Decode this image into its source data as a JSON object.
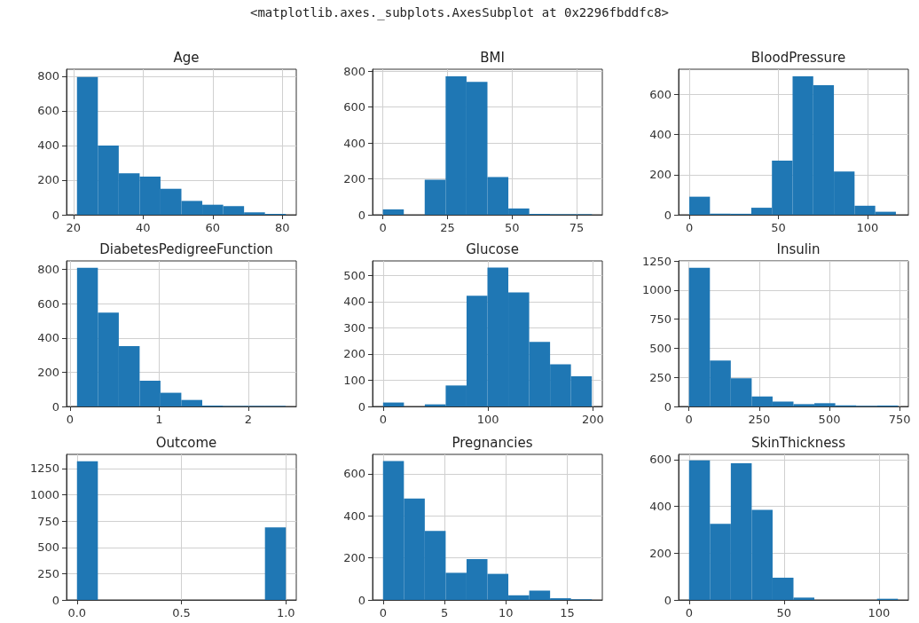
{
  "chart_data": [
    {
      "type": "histogram",
      "title": "Age",
      "annotations": [
        "<matplotlib.axes._subplots.AxesSubplot at 0x2296fbddfc8>"
      ],
      "bins": [
        21,
        27,
        33,
        39,
        45,
        51,
        57,
        63,
        69,
        75,
        81
      ],
      "values": [
        795,
        400,
        240,
        220,
        150,
        80,
        58,
        50,
        14,
        5
      ],
      "color": "#1f77b4",
      "xlim": [
        18,
        84
      ],
      "ylim": [
        0,
        840
      ],
      "xticks": [
        20,
        40,
        60,
        80
      ],
      "yticks": [
        0,
        200,
        400,
        600,
        800
      ],
      "grid": true
    },
    {
      "type": "histogram",
      "title": "BMI",
      "bins": [
        0,
        8.1,
        16.2,
        24.3,
        32.4,
        40.5,
        48.6,
        56.7,
        64.8,
        72.9,
        81
      ],
      "values": [
        30,
        0,
        195,
        770,
        740,
        210,
        35,
        5,
        3,
        3
      ],
      "color": "#1f77b4",
      "xlim": [
        -4,
        85
      ],
      "ylim": [
        0,
        810
      ],
      "xticks": [
        0,
        25,
        50,
        75
      ],
      "yticks": [
        0,
        200,
        400,
        600,
        800
      ],
      "grid": true
    },
    {
      "type": "histogram",
      "title": "BloodPressure",
      "bins": [
        0,
        11.6,
        23.2,
        34.8,
        46.4,
        58,
        69.6,
        81.2,
        92.8,
        104.4,
        116
      ],
      "values": [
        90,
        5,
        5,
        35,
        270,
        690,
        645,
        215,
        45,
        15
      ],
      "color": "#1f77b4",
      "xlim": [
        -6,
        123
      ],
      "ylim": [
        0,
        725
      ],
      "xticks": [
        0,
        50,
        100
      ],
      "yticks": [
        0,
        200,
        400,
        600
      ],
      "grid": true
    },
    {
      "type": "histogram",
      "title": "DiabetesPedigreeFunction",
      "bins": [
        0.078,
        0.312,
        0.547,
        0.781,
        1.015,
        1.249,
        1.484,
        1.718,
        1.952,
        2.186,
        2.42
      ],
      "values": [
        810,
        548,
        352,
        150,
        80,
        38,
        5,
        3,
        3,
        3
      ],
      "color": "#1f77b4",
      "xlim": [
        -0.04,
        2.54
      ],
      "ylim": [
        0,
        850
      ],
      "xticks": [
        0,
        1,
        2
      ],
      "yticks": [
        0,
        200,
        400,
        600,
        800
      ],
      "grid": true
    },
    {
      "type": "histogram",
      "title": "Glucose",
      "bins": [
        0,
        19.9,
        39.8,
        59.7,
        79.6,
        99.5,
        119.4,
        139.3,
        159.2,
        179.1,
        199
      ],
      "values": [
        15,
        0,
        8,
        80,
        422,
        530,
        435,
        246,
        161,
        115
      ],
      "color": "#1f77b4",
      "xlim": [
        -10,
        209
      ],
      "ylim": [
        0,
        555
      ],
      "xticks": [
        0,
        100,
        200
      ],
      "yticks": [
        0,
        100,
        200,
        300,
        400,
        500
      ],
      "grid": true
    },
    {
      "type": "histogram",
      "title": "Insulin",
      "bins": [
        0,
        74.4,
        148.8,
        223.2,
        297.6,
        372,
        446.4,
        520.8,
        595.2,
        669.6,
        744
      ],
      "values": [
        1190,
        395,
        242,
        85,
        42,
        20,
        28,
        10,
        5,
        8
      ],
      "color": "#1f77b4",
      "xlim": [
        -37,
        781
      ],
      "ylim": [
        0,
        1250
      ],
      "xticks": [
        0,
        250,
        500,
        750
      ],
      "yticks": [
        0,
        250,
        500,
        750,
        1000,
        1250
      ],
      "grid": true
    },
    {
      "type": "histogram",
      "title": "Outcome",
      "bins": [
        0,
        0.1,
        0.2,
        0.3,
        0.4,
        0.5,
        0.6,
        0.7,
        0.8,
        0.9,
        1
      ],
      "values": [
        1320,
        0,
        0,
        0,
        0,
        0,
        0,
        0,
        0,
        690
      ],
      "color": "#1f77b4",
      "xlim": [
        -0.05,
        1.05
      ],
      "ylim": [
        0,
        1385
      ],
      "xticks": [
        {
          "value": 0,
          "label": "0.0"
        },
        0.5,
        {
          "value": 1,
          "label": "1.0"
        }
      ],
      "yticks": [
        0,
        250,
        500,
        750,
        1000,
        1250
      ],
      "grid": true
    },
    {
      "type": "histogram",
      "title": "Pregnancies",
      "bins": [
        0,
        1.7,
        3.4,
        5.1,
        6.8,
        8.5,
        10.2,
        11.9,
        13.6,
        15.3,
        17
      ],
      "values": [
        660,
        482,
        328,
        129,
        194,
        124,
        22,
        44,
        8,
        3
      ],
      "color": "#1f77b4",
      "xlim": [
        -0.85,
        17.85
      ],
      "ylim": [
        0,
        692
      ],
      "xticks": [
        0,
        5,
        10,
        15
      ],
      "yticks": [
        0,
        200,
        400,
        600
      ],
      "grid": true
    },
    {
      "type": "histogram",
      "title": "SkinThickness",
      "bins": [
        0,
        11,
        22,
        33,
        44,
        55,
        66,
        77,
        88,
        99,
        110
      ],
      "values": [
        596,
        325,
        584,
        385,
        95,
        10,
        0,
        0,
        0,
        5
      ],
      "color": "#1f77b4",
      "xlim": [
        -5.5,
        115.5
      ],
      "ylim": [
        0,
        622
      ],
      "xticks": [
        0,
        50,
        100
      ],
      "yticks": [
        0,
        200,
        400,
        600
      ],
      "grid": true
    }
  ]
}
